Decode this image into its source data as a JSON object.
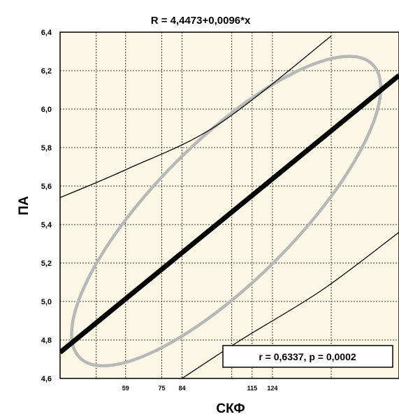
{
  "chart_data": {
    "type": "scatter",
    "title": "R = 4,4473+0,0096*x",
    "xlabel": "СКФ",
    "ylabel": "ПА",
    "xlim": [
      30,
      180
    ],
    "ylim": [
      4.6,
      6.4
    ],
    "yticks": [
      {
        "value": 4.6,
        "label": "4,6"
      },
      {
        "value": 4.8,
        "label": "4,8"
      },
      {
        "value": 5.0,
        "label": "5,0"
      },
      {
        "value": 5.2,
        "label": "5,2"
      },
      {
        "value": 5.4,
        "label": "5,4"
      },
      {
        "value": 5.6,
        "label": "5,6"
      },
      {
        "value": 5.8,
        "label": "5,8"
      },
      {
        "value": 6.0,
        "label": "6,0"
      },
      {
        "value": 6.2,
        "label": "6,2"
      },
      {
        "value": 6.4,
        "label": "6,4"
      }
    ],
    "xticks": [
      {
        "value": 59,
        "label": "59"
      },
      {
        "value": 75,
        "label": "75"
      },
      {
        "value": 84,
        "label": "84"
      },
      {
        "value": 115,
        "label": "115"
      },
      {
        "value": 124,
        "label": "124"
      }
    ],
    "x_gridlines": [
      46,
      59,
      75,
      84,
      106,
      115,
      124,
      150,
      180
    ],
    "y_gridlines": [
      4.8,
      5.0,
      5.2,
      5.4,
      5.6,
      5.8,
      6.0,
      6.2
    ],
    "grid": true,
    "regression": {
      "intercept": 4.4473,
      "slope": 0.0096
    },
    "confidence_bands": {
      "upper": [
        [
          30,
          5.54
        ],
        [
          60,
          5.69
        ],
        [
          100,
          5.92
        ],
        [
          150,
          6.38
        ]
      ],
      "lower": [
        [
          84,
          4.6
        ],
        [
          110,
          4.8
        ],
        [
          146,
          5.06
        ],
        [
          180,
          5.36
        ]
      ]
    },
    "ellipse": {
      "center": [
        103.5,
        5.47
      ],
      "rx": 65,
      "ry": 0.52,
      "rotation_deg": -45
    },
    "stats_label": "r = 0,6337, p = 0,0002",
    "colors": {
      "plot_background": "#fdf8e6",
      "regression_line": "#000000",
      "ellipse": "#b8b8b8",
      "bands": "#000000",
      "grid": "#000000"
    }
  }
}
